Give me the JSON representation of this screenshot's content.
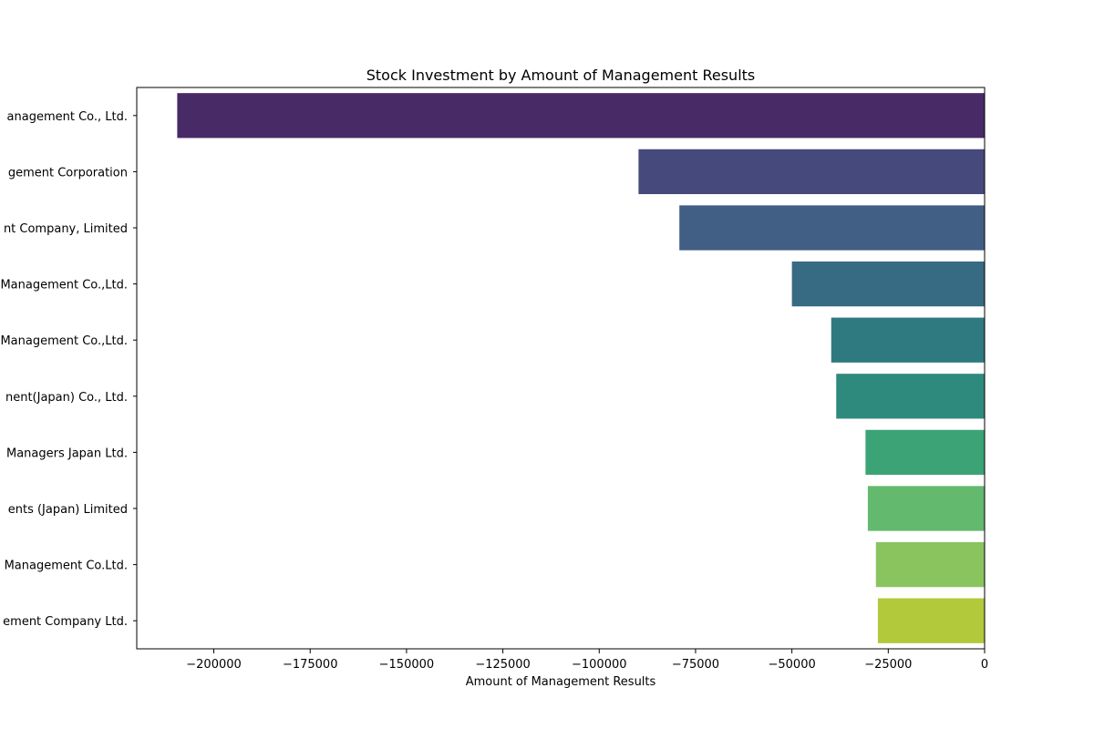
{
  "chart_data": {
    "type": "bar",
    "orientation": "horizontal",
    "title": "Stock Investment by Amount of Management Results",
    "xlabel": "Amount of Management Results",
    "ylabel": "",
    "xlim": [
      -220000,
      0
    ],
    "xticks": [
      -200000,
      -175000,
      -150000,
      -125000,
      -100000,
      -75000,
      -50000,
      -25000,
      0
    ],
    "xtick_labels": [
      "−200000",
      "−175000",
      "−150000",
      "−125000",
      "−100000",
      "−75000",
      "−50000",
      "−25000",
      "0"
    ],
    "grid": false,
    "legend": "none",
    "category_labels_visible": [
      "anagement Co., Ltd.",
      "gement Corporation",
      "nt Company, Limited",
      "Management Co.,Ltd.",
      "Management Co.,Ltd.",
      "nent(Japan) Co., Ltd.",
      "Managers Japan Ltd.",
      "ents (Japan) Limited",
      "Management Co.Ltd.",
      "ement Company Ltd."
    ],
    "values": [
      -209500,
      -89800,
      -79200,
      -50000,
      -39800,
      -38500,
      -30900,
      -30300,
      -28200,
      -27700
    ],
    "colors": [
      "#482a67",
      "#46497b",
      "#415e85",
      "#376a83",
      "#2e7a80",
      "#2f8a7e",
      "#3ba376",
      "#63b96e",
      "#89c45e",
      "#b1c93a"
    ]
  }
}
